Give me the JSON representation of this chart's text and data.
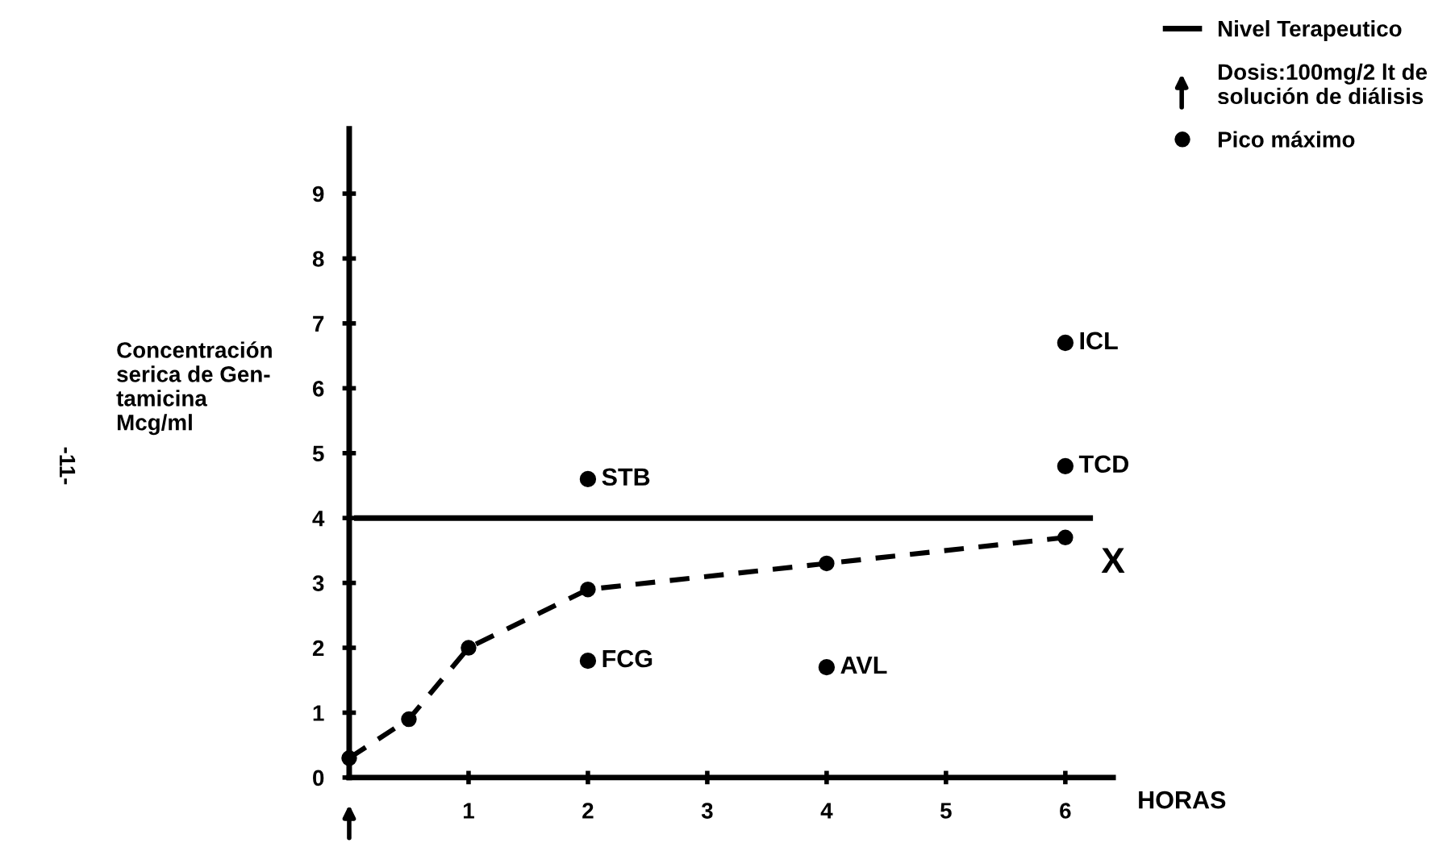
{
  "chart_data": {
    "type": "line",
    "ylabel": "Concentración\nserica de Gen-\ntamicina\nMcg/ml",
    "xlabel": "HORAS",
    "xlim": [
      0,
      6.4
    ],
    "xticks": [
      1,
      2,
      3,
      4,
      5,
      6
    ],
    "ylim": [
      0,
      10
    ],
    "yticks": [
      0,
      1,
      2,
      3,
      4,
      5,
      6,
      7,
      8,
      9
    ],
    "grid": false,
    "legend": "top right",
    "marker": "circle",
    "series": [
      {
        "color": "#000000",
        "line_style": "dashed",
        "x": [
          0,
          0.5,
          1,
          2,
          4,
          6
        ],
        "values": [
          0.3,
          0.9,
          2.0,
          2.9,
          3.3,
          3.7
        ]
      },
      {
        "type": "scatter",
        "name": "Pico máximo",
        "color": "#000000",
        "x": [
          2,
          2,
          4,
          6,
          6
        ],
        "values": [
          4.6,
          1.8,
          1.7,
          6.7,
          4.8
        ]
      }
    ],
    "ref_lines": [
      {
        "axis": "y",
        "value": 4,
        "label": "Nivel Terapeutico",
        "color": "#000000"
      }
    ],
    "annotations": [
      {
        "text": "STB",
        "x": 2,
        "y": 4.6
      },
      {
        "text": "FCG",
        "x": 2,
        "y": 1.8
      },
      {
        "text": "AVL",
        "x": 4,
        "y": 1.7
      },
      {
        "text": "ICL",
        "x": 6,
        "y": 6.7
      },
      {
        "text": "TCD",
        "x": 6,
        "y": 4.8
      },
      "X",
      "Dosis:100mg/2 lt de\nsolución de diálisis",
      "-11-"
    ]
  }
}
